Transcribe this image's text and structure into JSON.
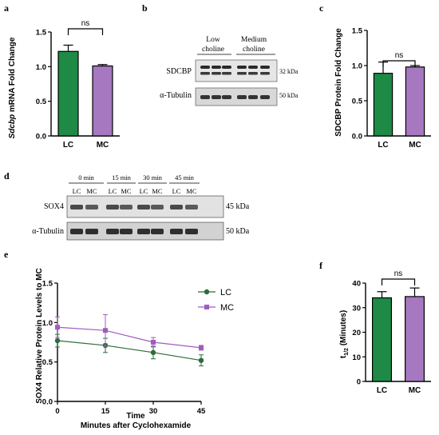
{
  "panel_labels": {
    "a": "a",
    "b": "b",
    "c": "c",
    "d": "d",
    "e": "e",
    "f": "f"
  },
  "colors": {
    "lc": "#1e8a46",
    "mc": "#a678c0",
    "line_lc": "#2c6b3c",
    "line_mc": "#a05cc0"
  },
  "blot_b": {
    "group1": "Low choline",
    "group1_line1": "Low",
    "group1_line2": "choline",
    "group2_line1": "Medium",
    "group2_line2": "choline",
    "row1": "SDCBP",
    "row1_kda": "32 kDa",
    "row2": "α-Tubulin",
    "row2_kda": "50 kDa"
  },
  "blot_d": {
    "times": [
      "0 min",
      "15 min",
      "30 min",
      "45 min"
    ],
    "lanes": [
      "LC",
      "MC",
      "LC",
      "MC",
      "LC",
      "MC",
      "LC",
      "MC"
    ],
    "row1": "SOX4",
    "row1_kda": "45 kDa",
    "row2": "α-Tubulin",
    "row2_kda": "50 kDa"
  },
  "chart_data": [
    {
      "id": "a",
      "type": "bar",
      "categories": [
        "LC",
        "MC"
      ],
      "values": [
        1.22,
        1.01
      ],
      "errors": [
        0.09,
        0.02
      ],
      "ylabel_italic": "Sdcbp",
      "ylabel_rest": " mRNA Fold Change",
      "yticks": [
        "0.0",
        "0.5",
        "1.0",
        "1.5"
      ],
      "ylim": [
        0,
        1.5
      ],
      "significance": "ns"
    },
    {
      "id": "c",
      "type": "bar",
      "categories": [
        "LC",
        "MC"
      ],
      "values": [
        0.89,
        0.98
      ],
      "errors": [
        0.16,
        0.02
      ],
      "ylabel": "SDCBP  Protein Fold Change",
      "yticks": [
        "0.0",
        "0.5",
        "1.0",
        "1.5"
      ],
      "ylim": [
        0,
        1.5
      ],
      "significance": "ns"
    },
    {
      "id": "e",
      "type": "line",
      "x": [
        0,
        15,
        30,
        45
      ],
      "series": [
        {
          "name": "LC",
          "values": [
            0.77,
            0.71,
            0.62,
            0.52
          ],
          "errors": [
            0.08,
            0.09,
            0.08,
            0.07
          ],
          "marker": "circle"
        },
        {
          "name": "MC",
          "values": [
            0.94,
            0.9,
            0.75,
            0.68
          ],
          "errors": [
            0.13,
            0.2,
            0.06,
            0.03
          ],
          "marker": "square"
        }
      ],
      "xticks": [
        "0",
        "15",
        "30",
        "45"
      ],
      "yticks": [
        "0.0",
        "0.5",
        "1.0",
        "1.5"
      ],
      "xlim": [
        0,
        45
      ],
      "ylim": [
        0,
        1.5
      ],
      "ylabel": "SOX4 Relative Protein Levels to MC",
      "xlabel_line1": "Time",
      "xlabel_line2": "Minutes after Cyclohexamide"
    },
    {
      "id": "f",
      "type": "bar",
      "categories": [
        "LC",
        "MC"
      ],
      "values": [
        34,
        34.5
      ],
      "errors": [
        2.5,
        3.5
      ],
      "ylabel": "t1/2 (Minutes)",
      "ylabel_main": "t",
      "ylabel_sub": "1/2",
      "ylabel_rest": " (Minutes)",
      "yticks": [
        "0",
        "10",
        "20",
        "30",
        "40"
      ],
      "ylim": [
        0,
        40
      ],
      "significance": "ns"
    }
  ]
}
